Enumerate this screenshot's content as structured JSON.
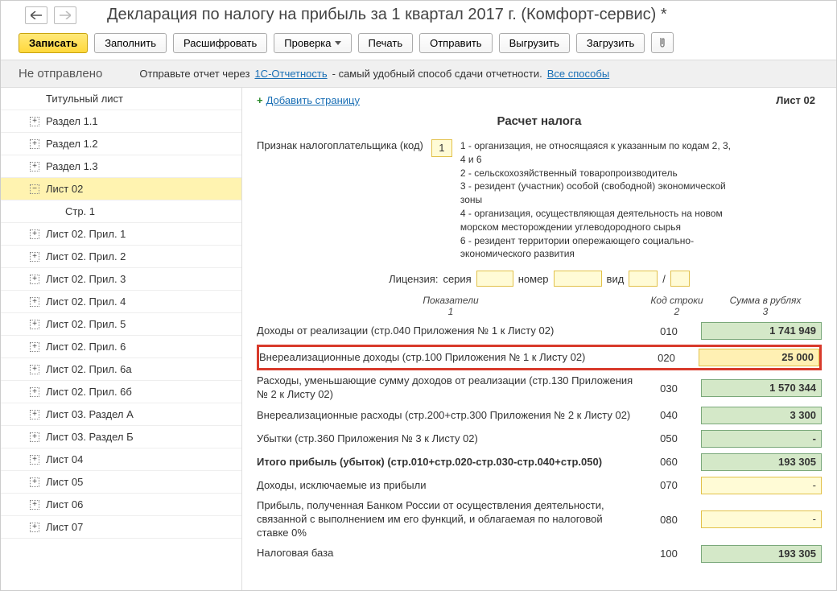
{
  "header": {
    "title": "Декларация по налогу на прибыль за 1 квартал 2017 г. (Комфорт-сервис) *"
  },
  "toolbar": {
    "write": "Записать",
    "fill": "Заполнить",
    "decrypt": "Расшифровать",
    "check": "Проверка",
    "print": "Печать",
    "send": "Отправить",
    "export": "Выгрузить",
    "import": "Загрузить"
  },
  "status": {
    "state": "Не отправлено",
    "prefix": "Отправьте отчет через ",
    "link1": "1С-Отчетность",
    "mid": " - самый удобный способ сдачи отчетности. ",
    "link2": "Все способы"
  },
  "sidebar": [
    {
      "label": "Титульный лист",
      "level": 1,
      "toggle": false
    },
    {
      "label": "Раздел 1.1",
      "level": 1,
      "toggle": true
    },
    {
      "label": "Раздел 1.2",
      "level": 1,
      "toggle": true
    },
    {
      "label": "Раздел 1.3",
      "level": 1,
      "toggle": true
    },
    {
      "label": "Лист 02",
      "level": 1,
      "toggle": true,
      "selected": true,
      "open": true
    },
    {
      "label": "Стр. 1",
      "level": 2,
      "toggle": false
    },
    {
      "label": "Лист 02. Прил. 1",
      "level": 1,
      "toggle": true
    },
    {
      "label": "Лист 02. Прил. 2",
      "level": 1,
      "toggle": true
    },
    {
      "label": "Лист 02. Прил. 3",
      "level": 1,
      "toggle": true
    },
    {
      "label": "Лист 02. Прил. 4",
      "level": 1,
      "toggle": true
    },
    {
      "label": "Лист 02. Прил. 5",
      "level": 1,
      "toggle": true
    },
    {
      "label": "Лист 02. Прил. 6",
      "level": 1,
      "toggle": true
    },
    {
      "label": "Лист 02. Прил. 6а",
      "level": 1,
      "toggle": true
    },
    {
      "label": "Лист 02. Прил. 6б",
      "level": 1,
      "toggle": true
    },
    {
      "label": "Лист 03. Раздел А",
      "level": 1,
      "toggle": true
    },
    {
      "label": "Лист 03. Раздел Б",
      "level": 1,
      "toggle": true
    },
    {
      "label": "Лист 04",
      "level": 1,
      "toggle": true
    },
    {
      "label": "Лист 05",
      "level": 1,
      "toggle": true
    },
    {
      "label": "Лист 06",
      "level": 1,
      "toggle": true
    },
    {
      "label": "Лист 07",
      "level": 1,
      "toggle": true
    }
  ],
  "main": {
    "add_page": "Добавить страницу",
    "sheet": "Лист 02",
    "section_title": "Расчет налога",
    "taxpayer_label": "Признак налогоплательщика (код)",
    "taxpayer_code": "1",
    "code_notes": [
      "1 - организация, не относящаяся к указанным по кодам 2, 3, 4 и 6",
      "2 - сельскохозяйственный товаропроизводитель",
      "3 - резидент (участник) особой (свободной) экономической зоны",
      "4 - организация, осуществляющая деятельность на новом морском месторождении углеводородного сырья",
      "6 - резидент территории опережающего социально-экономического развития"
    ],
    "license_label": "Лицензия:",
    "series": "серия",
    "number": "номер",
    "type": "вид",
    "col1": "Показатели",
    "col2": "Код строки",
    "col3": "Сумма в рублях",
    "n1": "1",
    "n2": "2",
    "n3": "3",
    "rows": [
      {
        "label": "Доходы от реализации (стр.040 Приложения № 1 к Листу 02)",
        "code": "010",
        "value": "1 741 949",
        "style": "green"
      },
      {
        "label": "Внереализационные доходы (стр.100 Приложения № 1 к Листу 02)",
        "code": "020",
        "value": "25 000",
        "style": "highlight"
      },
      {
        "label": "Расходы, уменьшающие сумму доходов от реализации (стр.130 Приложения № 2 к Листу 02)",
        "code": "030",
        "value": "1 570 344",
        "style": "green"
      },
      {
        "label": "Внереализационные расходы (стр.200+стр.300 Приложения № 2 к Листу 02)",
        "code": "040",
        "value": "3 300",
        "style": "green"
      },
      {
        "label": "Убытки (стр.360 Приложения № 3 к Листу 02)",
        "code": "050",
        "value": "-",
        "style": "green"
      },
      {
        "label": "Итого прибыль (убыток)  (стр.010+стр.020-стр.030-стр.040+стр.050)",
        "code": "060",
        "value": "193 305",
        "style": "green",
        "bold": true
      },
      {
        "label": "Доходы, исключаемые из прибыли",
        "code": "070",
        "value": "-",
        "style": "yellow"
      },
      {
        "label": "Прибыль, полученная Банком России от осуществления деятельности, связанной с выполнением им его функций, и облагаемая по налоговой ставке 0%",
        "code": "080",
        "value": "-",
        "style": "yellow"
      },
      {
        "label": "Налоговая база",
        "code": "100",
        "value": "193 305",
        "style": "green"
      }
    ]
  }
}
